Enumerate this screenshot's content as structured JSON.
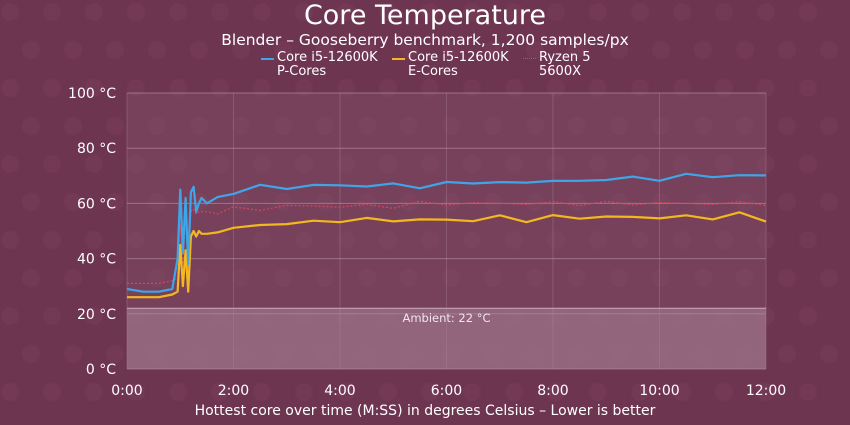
{
  "chart_data": {
    "type": "line",
    "title": "Core Temperature",
    "subtitle": "Blender – Gooseberry benchmark, 1,200 samples/px",
    "xlabel": "Hottest core over time (M:SS) in degrees Celsius – Lower is better",
    "ylabel": "",
    "x_unit": "minutes",
    "xlim": [
      0,
      12
    ],
    "ylim": [
      0,
      100
    ],
    "x_ticks": [
      {
        "value": 0,
        "label": "0:00"
      },
      {
        "value": 2,
        "label": "2:00"
      },
      {
        "value": 4,
        "label": "4:00"
      },
      {
        "value": 6,
        "label": "6:00"
      },
      {
        "value": 8,
        "label": "8:00"
      },
      {
        "value": 10,
        "label": "10:00"
      },
      {
        "value": 12,
        "label": "12:00"
      }
    ],
    "y_ticks": [
      {
        "value": 0,
        "label": "0 °C"
      },
      {
        "value": 20,
        "label": "20 °C"
      },
      {
        "value": 40,
        "label": "40 °C"
      },
      {
        "value": 60,
        "label": "60 °C"
      },
      {
        "value": 80,
        "label": "80 °C"
      },
      {
        "value": 100,
        "label": "100 °C"
      }
    ],
    "grid": true,
    "legend_position": "top-center",
    "ambient": {
      "value": 22,
      "label": "Ambient: 22 °C"
    },
    "series": [
      {
        "name": "Core i5-12600K\nP-Cores",
        "color": "#3ea6e8",
        "style": "solid",
        "x": [
          0,
          0.3,
          0.6,
          0.85,
          0.95,
          1.0,
          1.05,
          1.1,
          1.15,
          1.2,
          1.25,
          1.3,
          1.35,
          1.4,
          1.5,
          1.7,
          2.0,
          2.5,
          3.0,
          3.5,
          4.0,
          4.5,
          5.0,
          5.5,
          6.0,
          6.5,
          7.0,
          7.5,
          8.0,
          8.5,
          9.0,
          9.5,
          10.0,
          10.5,
          11.0,
          11.5,
          12.0
        ],
        "y": [
          29,
          28,
          28,
          29,
          40,
          65,
          42,
          62,
          38,
          64,
          66,
          57,
          60,
          62,
          60,
          62,
          64,
          66,
          66,
          66,
          67,
          66,
          67,
          66,
          67,
          68,
          67,
          68,
          68,
          68,
          69,
          69,
          69,
          70,
          70,
          70,
          70
        ]
      },
      {
        "name": "Core i5-12600K\nE-Cores",
        "color": "#f2b81d",
        "style": "solid",
        "x": [
          0,
          0.3,
          0.6,
          0.85,
          0.95,
          1.0,
          1.05,
          1.1,
          1.15,
          1.2,
          1.25,
          1.3,
          1.35,
          1.4,
          1.5,
          1.7,
          2.0,
          2.5,
          3.0,
          3.5,
          4.0,
          4.5,
          5.0,
          5.5,
          6.0,
          6.5,
          7.0,
          7.5,
          8.0,
          8.5,
          9.0,
          9.5,
          10.0,
          10.5,
          11.0,
          11.5,
          12.0
        ],
        "y": [
          26,
          26,
          26,
          27,
          28,
          45,
          30,
          43,
          28,
          48,
          50,
          48,
          50,
          49,
          49,
          50,
          51,
          52,
          53,
          53,
          54,
          54,
          54,
          54,
          54,
          54,
          55,
          54,
          55,
          55,
          55,
          55,
          55,
          55,
          55,
          56,
          54
        ]
      },
      {
        "name": "Ryzen 5\n5600X",
        "color": "#d9455c",
        "style": "dotted",
        "x": [
          0,
          0.3,
          0.6,
          0.85,
          0.95,
          1.0,
          1.05,
          1.1,
          1.15,
          1.2,
          1.25,
          1.3,
          1.35,
          1.4,
          1.5,
          1.7,
          2.0,
          2.5,
          3.0,
          3.5,
          4.0,
          4.5,
          5.0,
          5.5,
          6.0,
          6.5,
          7.0,
          7.5,
          8.0,
          8.5,
          9.0,
          9.5,
          10.0,
          10.5,
          11.0,
          11.5,
          12.0
        ],
        "y": [
          31,
          31,
          31,
          32,
          33,
          52,
          38,
          55,
          36,
          57,
          58,
          56,
          57,
          57,
          57,
          57,
          58,
          58,
          59,
          59,
          59,
          59,
          59,
          60,
          60,
          60,
          60,
          60,
          60,
          60,
          60,
          60,
          60,
          60,
          60,
          60,
          60
        ]
      }
    ]
  }
}
